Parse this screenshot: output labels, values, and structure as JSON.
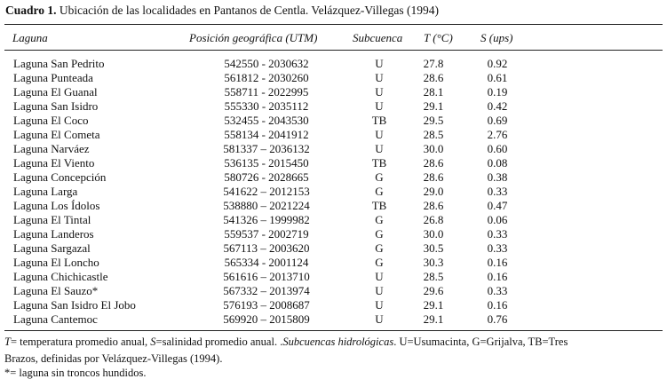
{
  "title": {
    "label": "Cuadro 1.",
    "text": " Ubicación de las localidades en Pantanos de Centla. Velázquez-Villegas (1994)"
  },
  "headers": {
    "laguna": "Laguna",
    "posicion": "Posición geográfica (UTM)",
    "subcuenca": "Subcuenca",
    "t": "T (°C)",
    "s": "S (ups)"
  },
  "rows": [
    {
      "laguna": "Laguna San Pedrito",
      "posicion": "542550 - 2030632",
      "subcuenca": "U",
      "t": "27.8",
      "s": "0.92"
    },
    {
      "laguna": "Laguna Punteada",
      "posicion": "561812 - 2030260",
      "subcuenca": "U",
      "t": "28.6",
      "s": "0.61"
    },
    {
      "laguna": "Laguna El Guanal",
      "posicion": "558711 - 2022995",
      "subcuenca": "U",
      "t": "28.1",
      "s": "0.19"
    },
    {
      "laguna": "Laguna San Isidro",
      "posicion": "555330 - 2035112",
      "subcuenca": "U",
      "t": "29.1",
      "s": "0.42"
    },
    {
      "laguna": "Laguna El Coco",
      "posicion": "532455 - 2043530",
      "subcuenca": "TB",
      "t": "29.5",
      "s": "0.69"
    },
    {
      "laguna": "Laguna El Cometa",
      "posicion": "558134 - 2041912",
      "subcuenca": "U",
      "t": "28.5",
      "s": "2.76"
    },
    {
      "laguna": "Laguna Narváez",
      "posicion": "581337 – 2036132",
      "subcuenca": "U",
      "t": "30.0",
      "s": "0.60"
    },
    {
      "laguna": "Laguna El Viento",
      "posicion": "536135 - 2015450",
      "subcuenca": "TB",
      "t": "28.6",
      "s": "0.08"
    },
    {
      "laguna": "Laguna Concepción",
      "posicion": "580726 - 2028665",
      "subcuenca": "G",
      "t": "28.6",
      "s": "0.38"
    },
    {
      "laguna": "Laguna Larga",
      "posicion": "541622 – 2012153",
      "subcuenca": "G",
      "t": "29.0",
      "s": "0.33"
    },
    {
      "laguna": "Laguna Los Ídolos",
      "posicion": "538880 – 2021224",
      "subcuenca": "TB",
      "t": "28.6",
      "s": "0.47"
    },
    {
      "laguna": "Laguna El Tintal",
      "posicion": "541326 – 1999982",
      "subcuenca": "G",
      "t": "26.8",
      "s": "0.06"
    },
    {
      "laguna": "Laguna Landeros",
      "posicion": "559537 - 2002719",
      "subcuenca": "G",
      "t": "30.0",
      "s": "0.33"
    },
    {
      "laguna": "Laguna Sargazal",
      "posicion": "567113 – 2003620",
      "subcuenca": "G",
      "t": "30.5",
      "s": "0.33"
    },
    {
      "laguna": "Laguna El Loncho",
      "posicion": "565334 - 2001124",
      "subcuenca": "G",
      "t": "30.3",
      "s": "0.16"
    },
    {
      "laguna": "Laguna Chichicastle",
      "posicion": "561616 – 2013710",
      "subcuenca": "U",
      "t": "28.5",
      "s": "0.16"
    },
    {
      "laguna": "Laguna El Sauzo*",
      "posicion": "567332 – 2013974",
      "subcuenca": "U",
      "t": "29.6",
      "s": "0.33"
    },
    {
      "laguna": "Laguna San Isidro El Jobo",
      "posicion": "576193 – 2008687",
      "subcuenca": "U",
      "t": "29.1",
      "s": "0.16"
    },
    {
      "laguna": "Laguna Cantemoc",
      "posicion": "569920 – 2015809",
      "subcuenca": "U",
      "t": "29.1",
      "s": "0.76"
    }
  ],
  "notes": {
    "t_sym": "T",
    "t_def": "= temperatura promedio anual, ",
    "s_sym": "S",
    "s_def": "=salinidad promedio anual. .",
    "subcuencas": "Subcuencas hidrológicas",
    "subcuencas_def": ". U=Usumacinta,  G=Grijalva, TB=Tres",
    "line2": "Brazos,  definidas por Velázquez-Villegas (1994).",
    "line3": "*= laguna sin troncos hundidos."
  }
}
